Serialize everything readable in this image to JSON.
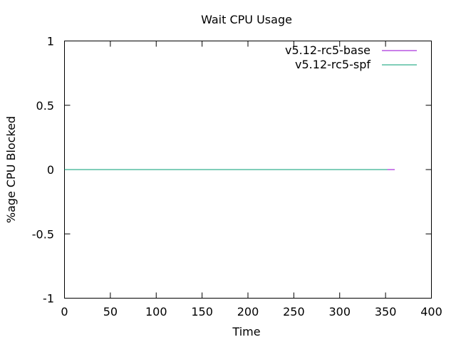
{
  "chart_data": {
    "type": "line",
    "title": "Wait CPU Usage",
    "xlabel": "Time",
    "ylabel": "%age CPU Blocked",
    "xlim": [
      0,
      400
    ],
    "ylim": [
      -1,
      1
    ],
    "xticks": [
      0,
      50,
      100,
      150,
      200,
      250,
      300,
      350,
      400
    ],
    "yticks": [
      -1,
      -0.5,
      0,
      0.5,
      1
    ],
    "xtick_labels": [
      "0",
      "50",
      "100",
      "150",
      "200",
      "250",
      "300",
      "350",
      "400"
    ],
    "ytick_labels": [
      "-1",
      "-0.5",
      "0",
      "0.5",
      "1"
    ],
    "grid": false,
    "legend_position": "top-right",
    "series": [
      {
        "name": "v5.12-rc5-base",
        "color": "#9400d3",
        "x": [
          0,
          360
        ],
        "y": [
          0,
          0
        ]
      },
      {
        "name": "v5.12-rc5-spf",
        "color": "#009e73",
        "x": [
          0,
          352
        ],
        "y": [
          0,
          0
        ]
      }
    ]
  }
}
